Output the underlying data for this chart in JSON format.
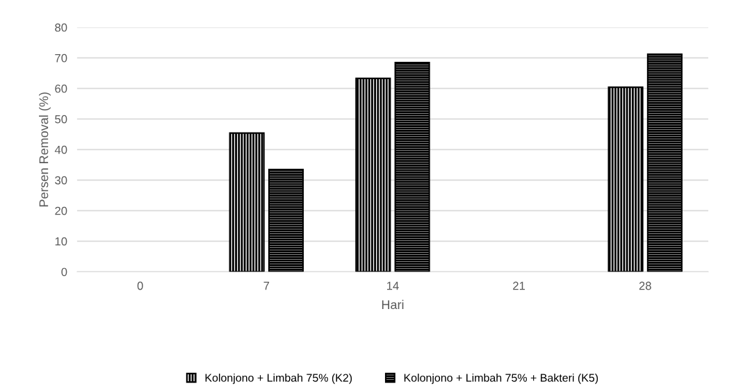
{
  "chart_data": {
    "type": "bar",
    "xlabel": "Hari",
    "ylabel": "Persen Removal (%)",
    "categories": [
      "0",
      "7",
      "14",
      "21",
      "28"
    ],
    "series": [
      {
        "name": "Kolonjono + Limbah 75% (K2)",
        "color": "#000000",
        "values": [
          null,
          45.4,
          63.3,
          null,
          60.4
        ]
      },
      {
        "name": "Kolonjono + Limbah 75% + Bakteri (K5)",
        "color": "#000000",
        "values": [
          null,
          33.5,
          68.5,
          null,
          71.2
        ]
      }
    ],
    "ylim": [
      0,
      80
    ],
    "yticks": [
      0,
      10,
      20,
      30,
      40,
      50,
      60,
      70,
      80
    ],
    "grid": "y",
    "legend": "bottom"
  }
}
